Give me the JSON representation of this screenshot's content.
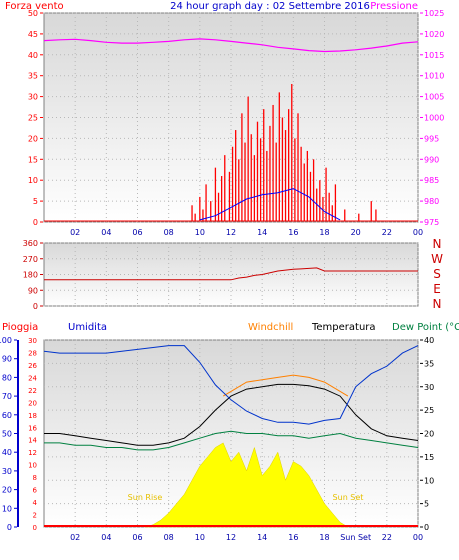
{
  "panel1": {
    "title": "24 hour graph day : 02 Settembre 2016",
    "left_label": "Forza vento",
    "right_label": "Pressione"
  },
  "panel2": {
    "dir_labels": [
      "N",
      "W",
      "S",
      "E",
      "N"
    ]
  },
  "panel3": {
    "label_rain": "Pioggia",
    "label_humidity": "Umidita",
    "label_windchill": "Windchill",
    "label_temp": "Temperatura",
    "label_dew": "Dew Point (°C",
    "sun_rise": "Sun Rise",
    "sun_set": "Sun Set"
  },
  "colors": {
    "wind": "#ff0000",
    "wind_avg": "#0000ff",
    "wind_dir": "#cc0000",
    "pressure": "#ff00ff",
    "humidity": "#0033cc",
    "windchill": "#ff8000",
    "temperature": "#000000",
    "dewpoint": "#008040",
    "solar": "#ffff00",
    "rain": "#ff0000"
  },
  "chart_data": [
    {
      "type": "bar",
      "title": "24 hour graph day : 02 Settembre 2016",
      "x_ticks": [
        "02",
        "04",
        "06",
        "08",
        "10",
        "12",
        "14",
        "16",
        "18",
        "20",
        "22",
        "00"
      ],
      "xlim": [
        0,
        24
      ],
      "y_left": {
        "label": "Forza vento",
        "ylim": [
          0,
          50
        ],
        "ticks": [
          0,
          5,
          10,
          15,
          20,
          25,
          30,
          35,
          40,
          45,
          50
        ]
      },
      "y_right": {
        "label": "Pressione",
        "ylim": [
          975,
          1025
        ],
        "ticks": [
          975,
          980,
          985,
          990,
          995,
          1000,
          1005,
          1010,
          1015,
          1020,
          1025
        ]
      },
      "series": [
        {
          "name": "Pressione",
          "type": "line",
          "x": [
            0,
            1,
            2,
            3,
            4,
            5,
            6,
            7,
            8,
            9,
            10,
            11,
            12,
            13,
            14,
            15,
            16,
            17,
            18,
            19,
            20,
            21,
            22,
            23,
            24
          ],
          "values": [
            1018.4,
            1018.6,
            1018.7,
            1018.4,
            1018.0,
            1017.8,
            1017.8,
            1018.0,
            1018.2,
            1018.6,
            1018.8,
            1018.6,
            1018.2,
            1017.8,
            1017.4,
            1016.8,
            1016.4,
            1016.0,
            1015.8,
            1015.9,
            1016.2,
            1016.6,
            1017.1,
            1017.8,
            1018.1
          ]
        },
        {
          "name": "Forza vento",
          "type": "bar",
          "x": [
            9.5,
            9.7,
            10.0,
            10.2,
            10.4,
            10.7,
            11.0,
            11.2,
            11.4,
            11.6,
            11.9,
            12.1,
            12.3,
            12.5,
            12.7,
            12.9,
            13.1,
            13.3,
            13.5,
            13.7,
            13.9,
            14.1,
            14.3,
            14.5,
            14.7,
            14.9,
            15.1,
            15.3,
            15.5,
            15.7,
            15.9,
            16.1,
            16.3,
            16.5,
            16.7,
            16.9,
            17.1,
            17.3,
            17.5,
            17.7,
            17.9,
            18.1,
            18.3,
            18.5,
            18.7,
            19.3,
            20.2,
            21.0,
            21.3
          ],
          "values": [
            4,
            2,
            6,
            3,
            9,
            5,
            13,
            7,
            11,
            16,
            12,
            18,
            22,
            15,
            26,
            19,
            30,
            21,
            16,
            24,
            20,
            27,
            17,
            23,
            28,
            19,
            31,
            25,
            22,
            27,
            33,
            20,
            26,
            18,
            14,
            17,
            12,
            15,
            8,
            10,
            6,
            13,
            7,
            4,
            9,
            3,
            2,
            5,
            3
          ]
        },
        {
          "name": "avg",
          "type": "line",
          "x": [
            10,
            11,
            12,
            13,
            14,
            15,
            16,
            17,
            18,
            19
          ],
          "values": [
            0.5,
            1.5,
            3.5,
            5.5,
            6.5,
            7,
            8,
            6,
            2.5,
            0.5
          ]
        }
      ]
    },
    {
      "type": "line",
      "title": "",
      "x_ticks": [],
      "xlim": [
        0,
        24
      ],
      "y_left": {
        "label": "",
        "ylim": [
          0,
          360
        ],
        "ticks": [
          0,
          90,
          180,
          270,
          360
        ]
      },
      "series": [
        {
          "name": "",
          "x": [
            0,
            2,
            4,
            6,
            8,
            10,
            12,
            12.5,
            13,
            13.5,
            14,
            14.5,
            15,
            15.5,
            16,
            16.5,
            17,
            17.5,
            18,
            19,
            20,
            22,
            24
          ],
          "values": [
            150,
            150,
            150,
            150,
            150,
            150,
            150,
            160,
            165,
            175,
            180,
            190,
            200,
            205,
            210,
            212,
            215,
            218,
            200,
            200,
            200,
            200,
            200
          ]
        }
      ]
    },
    {
      "type": "line",
      "title": "",
      "x_ticks": [
        "02",
        "04",
        "06",
        "08",
        "10",
        "12",
        "14",
        "16",
        "18",
        "Sun Set",
        "22",
        "00"
      ],
      "xlim": [
        0,
        24
      ],
      "y_left": {
        "label": "Umidita",
        "ylim": [
          0,
          100
        ],
        "ticks": [
          0,
          10,
          20,
          30,
          40,
          50,
          60,
          70,
          80,
          90,
          100
        ]
      },
      "y_left2": {
        "label": "Pioggia",
        "ylim": [
          0,
          30
        ],
        "ticks": [
          0,
          2,
          4,
          6,
          8,
          10,
          12,
          14,
          16,
          18,
          20,
          22,
          24,
          26,
          28,
          30
        ]
      },
      "y_right": {
        "label": "Dew Point (°C",
        "ylim": [
          0,
          40
        ],
        "ticks": [
          0,
          5,
          10,
          15,
          20,
          25,
          30,
          35,
          40
        ]
      },
      "series": [
        {
          "name": "Umidita",
          "axis": "left",
          "x": [
            0,
            1,
            2,
            3,
            4,
            5,
            6,
            7,
            8,
            9,
            10,
            11,
            12,
            13,
            14,
            15,
            16,
            17,
            18,
            19,
            20,
            21,
            22,
            23,
            24
          ],
          "values": [
            94,
            93,
            93,
            93,
            93,
            94,
            95,
            96,
            97,
            97,
            88,
            76,
            68,
            62,
            58,
            56,
            56,
            55,
            57,
            58,
            75,
            82,
            86,
            93,
            97
          ]
        },
        {
          "name": "Temperatura",
          "axis": "right",
          "x": [
            0,
            1,
            2,
            3,
            4,
            5,
            6,
            7,
            8,
            9,
            10,
            11,
            12,
            13,
            14,
            15,
            16,
            17,
            18,
            19,
            20,
            21,
            22,
            23,
            24
          ],
          "values": [
            20,
            20,
            19.5,
            19,
            18.5,
            18,
            17.5,
            17.5,
            18,
            19,
            21.5,
            25,
            28,
            29.5,
            30,
            30.5,
            30.5,
            30.2,
            29.5,
            28,
            24,
            21,
            19.5,
            19,
            18.5
          ]
        },
        {
          "name": "Windchill",
          "axis": "right",
          "x": [
            11.5,
            12,
            13,
            14,
            15,
            16,
            17,
            18,
            19.5
          ],
          "values": [
            28,
            29,
            31,
            31.5,
            32,
            32.5,
            32,
            31,
            28
          ]
        },
        {
          "name": "Dew Point",
          "axis": "right",
          "x": [
            0,
            1,
            2,
            3,
            4,
            5,
            6,
            7,
            8,
            9,
            10,
            11,
            12,
            13,
            14,
            15,
            16,
            17,
            18,
            19,
            20,
            21,
            22,
            23,
            24
          ],
          "values": [
            18,
            18,
            17.5,
            17.5,
            17,
            17,
            16.5,
            16.5,
            17,
            18,
            19,
            20,
            20.5,
            20,
            20,
            19.5,
            19.5,
            19,
            19.5,
            20,
            19,
            18.5,
            18,
            17.5,
            17
          ]
        },
        {
          "name": "Solar",
          "type": "area",
          "axis": "right",
          "x": [
            6.5,
            7,
            7.5,
            8,
            8.5,
            9,
            9.5,
            10,
            10.5,
            11,
            11.5,
            12,
            12.5,
            13,
            13.5,
            14,
            14.5,
            15,
            15.5,
            16,
            16.5,
            17,
            17.5,
            18,
            18.5,
            19,
            19.5
          ],
          "values": [
            0,
            0.5,
            1.5,
            3,
            5,
            7,
            10,
            13,
            15,
            17,
            18,
            14,
            16,
            12,
            17,
            11,
            13,
            16,
            10,
            14,
            13,
            11,
            8,
            5,
            3,
            1,
            0
          ]
        },
        {
          "name": "Pioggia",
          "type": "bar",
          "axis": "left2",
          "x": [
            0,
            24
          ],
          "values": [
            0,
            0
          ]
        }
      ]
    }
  ]
}
